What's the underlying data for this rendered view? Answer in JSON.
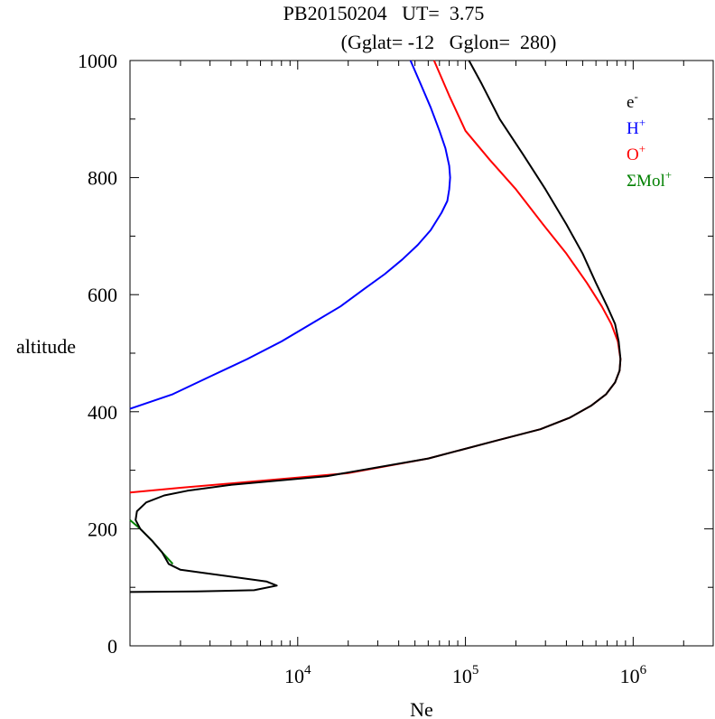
{
  "chart_data": {
    "type": "line",
    "title_line1": "PB20150204   UT=  3.75",
    "title_line2": "(Gglat= -12   Gglon=  280)",
    "xlabel": "Ne",
    "ylabel": "altitude",
    "xscale": "log",
    "xlim": [
      1000,
      3000000
    ],
    "ylim": [
      0,
      1000
    ],
    "y_ticks": [
      0,
      200,
      400,
      600,
      800,
      1000
    ],
    "x_tick_exponents": [
      "4",
      "5",
      "6"
    ],
    "x_tick_base": "10",
    "legend_position": "top-right",
    "grid": false,
    "series": [
      {
        "key": "h",
        "label": "H",
        "sup": "+",
        "color": "#0000ff",
        "x": [
          1000,
          1800,
          3000,
          5000,
          8000,
          12000,
          18000,
          25000,
          33000,
          42000,
          52000,
          62000,
          72000,
          78000,
          80000,
          81000,
          80000,
          76000,
          70000,
          62000,
          54000,
          47000
        ],
        "y": [
          405,
          430,
          460,
          490,
          520,
          550,
          580,
          610,
          635,
          660,
          685,
          710,
          740,
          760,
          780,
          800,
          820,
          850,
          880,
          920,
          960,
          1000
        ]
      },
      {
        "key": "o",
        "label": "O",
        "sup": "+",
        "color": "#ff0000",
        "x": [
          1000,
          2000,
          5000,
          20000,
          60000,
          150000,
          280000,
          420000,
          560000,
          690000,
          780000,
          830000,
          840000,
          810000,
          740000,
          650000,
          530000,
          400000,
          290000,
          200000,
          140000,
          100000,
          80000,
          65000
        ],
        "y": [
          262,
          270,
          280,
          295,
          320,
          350,
          370,
          390,
          410,
          430,
          450,
          470,
          490,
          520,
          550,
          580,
          620,
          670,
          720,
          780,
          830,
          880,
          940,
          1000
        ]
      },
      {
        "key": "mol",
        "label": "ΣMol",
        "sup": "+",
        "color": "#008000",
        "x": [
          1000,
          1150,
          1350,
          1550,
          1800
        ],
        "y": [
          215,
          200,
          180,
          160,
          140
        ]
      },
      {
        "key": "e",
        "label": "e",
        "sup": "-",
        "color": "#000000",
        "x": [
          1000,
          2500,
          5500,
          7500,
          6500,
          2000,
          1700,
          1550,
          1350,
          1150,
          1080,
          1100,
          1250,
          1600,
          2200,
          4000,
          15000,
          60000,
          150000,
          280000,
          420000,
          560000,
          690000,
          780000,
          830000,
          840000,
          820000,
          780000,
          700000,
          600000,
          500000,
          400000,
          300000,
          220000,
          160000,
          125000,
          105000
        ],
        "y": [
          92,
          93,
          95,
          103,
          110,
          130,
          140,
          160,
          180,
          200,
          215,
          230,
          245,
          257,
          265,
          275,
          290,
          320,
          350,
          370,
          390,
          410,
          430,
          450,
          470,
          490,
          520,
          550,
          580,
          620,
          670,
          720,
          780,
          840,
          900,
          960,
          1000
        ]
      }
    ]
  }
}
